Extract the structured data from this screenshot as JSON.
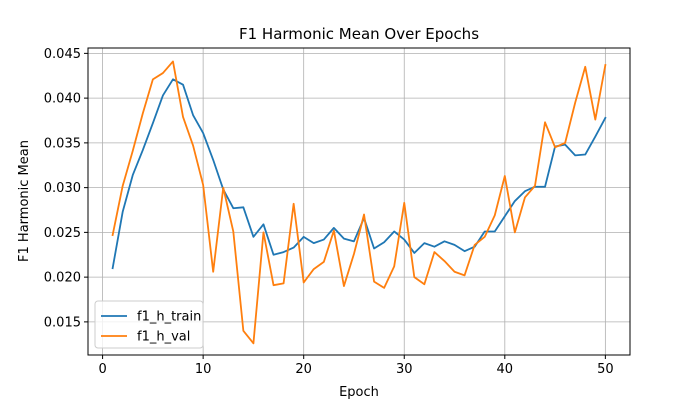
{
  "chart_data": {
    "type": "line",
    "title": "F1 Harmonic Mean Over Epochs",
    "xlabel": "Epoch",
    "ylabel": "F1 Harmonic Mean",
    "xlim": [
      -1.45,
      52.45
    ],
    "ylim": [
      0.0113,
      0.0456
    ],
    "xticks": [
      0,
      10,
      20,
      30,
      40,
      50
    ],
    "xtick_labels": [
      "0",
      "10",
      "20",
      "30",
      "40",
      "50"
    ],
    "yticks": [
      0.015,
      0.02,
      0.025,
      0.03,
      0.035,
      0.04,
      0.045
    ],
    "ytick_labels": [
      "0.015",
      "0.020",
      "0.025",
      "0.030",
      "0.035",
      "0.040",
      "0.045"
    ],
    "grid": true,
    "legend_position": "lower-left",
    "x": [
      1,
      2,
      3,
      4,
      5,
      6,
      7,
      8,
      9,
      10,
      11,
      12,
      13,
      14,
      15,
      16,
      17,
      18,
      19,
      20,
      21,
      22,
      23,
      24,
      25,
      26,
      27,
      28,
      29,
      30,
      31,
      32,
      33,
      34,
      35,
      36,
      37,
      38,
      39,
      40,
      41,
      42,
      43,
      44,
      45,
      46,
      47,
      48,
      49,
      50
    ],
    "series": [
      {
        "name": "f1_h_train",
        "color": "#1f77b4",
        "values": [
          0.021,
          0.0273,
          0.0314,
          0.0342,
          0.0372,
          0.0403,
          0.0421,
          0.0415,
          0.0381,
          0.0361,
          0.0331,
          0.0298,
          0.0277,
          0.0278,
          0.0245,
          0.0259,
          0.0225,
          0.0228,
          0.0233,
          0.0245,
          0.0238,
          0.0242,
          0.0255,
          0.0243,
          0.024,
          0.0266,
          0.0232,
          0.0239,
          0.0251,
          0.0242,
          0.0227,
          0.0238,
          0.0234,
          0.024,
          0.0236,
          0.0229,
          0.0234,
          0.0251,
          0.0251,
          0.0268,
          0.0285,
          0.0296,
          0.0301,
          0.0301,
          0.0346,
          0.0348,
          0.0336,
          0.0337,
          0.0357,
          0.0378
        ]
      },
      {
        "name": "f1_h_val",
        "color": "#ff7f0e",
        "values": [
          0.0247,
          0.0302,
          0.0341,
          0.0383,
          0.0421,
          0.0428,
          0.0441,
          0.0379,
          0.0347,
          0.0303,
          0.0206,
          0.03,
          0.0251,
          0.014,
          0.0126,
          0.025,
          0.0191,
          0.0193,
          0.0282,
          0.0194,
          0.0209,
          0.0217,
          0.0252,
          0.019,
          0.0226,
          0.027,
          0.0195,
          0.0188,
          0.0212,
          0.0283,
          0.02,
          0.0192,
          0.0228,
          0.0218,
          0.0206,
          0.0202,
          0.0236,
          0.0245,
          0.0269,
          0.0313,
          0.025,
          0.0289,
          0.0302,
          0.0373,
          0.0345,
          0.035,
          0.0395,
          0.0435,
          0.0376,
          0.0437
        ]
      }
    ]
  }
}
